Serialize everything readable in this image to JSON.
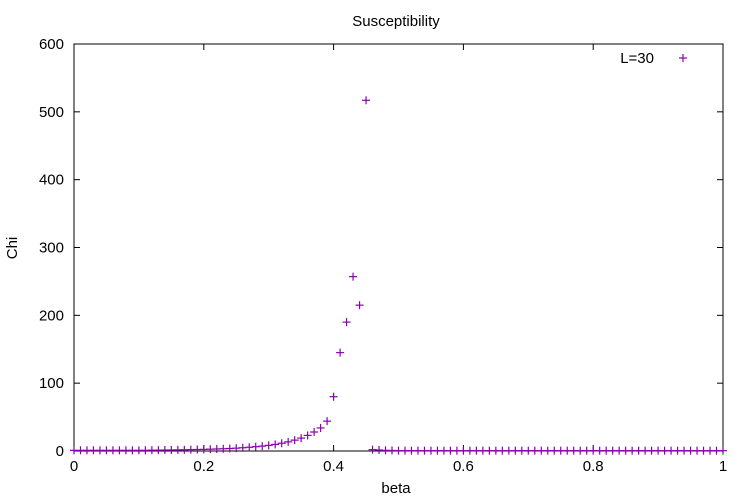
{
  "chart_data": {
    "type": "scatter",
    "title": "Susceptibility",
    "xlabel": "beta",
    "ylabel": "Chi",
    "xlim": [
      0,
      1
    ],
    "ylim": [
      0,
      600
    ],
    "xticks": [
      0,
      0.2,
      0.4,
      0.6,
      0.8,
      1
    ],
    "xtick_labels": [
      "0",
      "0.2",
      "0.4",
      "0.6",
      "0.8",
      "1"
    ],
    "yticks": [
      0,
      100,
      200,
      300,
      400,
      500,
      600
    ],
    "ytick_labels": [
      "0",
      "100",
      "200",
      "300",
      "400",
      "500",
      "600"
    ],
    "legend_position": "top-right",
    "grid": false,
    "marker": "plus",
    "series_color": "#8b00b0",
    "series": [
      {
        "name": "L=30",
        "x": [
          0.0,
          0.01,
          0.02,
          0.03,
          0.04,
          0.05,
          0.06,
          0.07,
          0.08,
          0.09,
          0.1,
          0.11,
          0.12,
          0.13,
          0.14,
          0.15,
          0.16,
          0.17,
          0.18,
          0.19,
          0.2,
          0.21,
          0.22,
          0.23,
          0.24,
          0.25,
          0.26,
          0.27,
          0.28,
          0.29,
          0.3,
          0.31,
          0.32,
          0.33,
          0.34,
          0.35,
          0.36,
          0.37,
          0.38,
          0.39,
          0.4,
          0.41,
          0.42,
          0.43,
          0.44,
          0.45,
          0.46,
          0.47,
          0.48,
          0.49,
          0.5,
          0.51,
          0.52,
          0.53,
          0.54,
          0.55,
          0.56,
          0.57,
          0.58,
          0.59,
          0.6,
          0.61,
          0.62,
          0.63,
          0.64,
          0.65,
          0.66,
          0.67,
          0.68,
          0.69,
          0.7,
          0.71,
          0.72,
          0.73,
          0.74,
          0.75,
          0.76,
          0.77,
          0.78,
          0.79,
          0.8,
          0.81,
          0.82,
          0.83,
          0.84,
          0.85,
          0.86,
          0.87,
          0.88,
          0.89,
          0.9,
          0.91,
          0.92,
          0.93,
          0.94,
          0.95,
          0.96,
          0.97,
          0.98,
          0.99,
          1.0
        ],
        "y": [
          1,
          1,
          1,
          1,
          1,
          1,
          1,
          1,
          1,
          1,
          1,
          1,
          1.2,
          1.3,
          1.4,
          1.5,
          1.7,
          1.8,
          2,
          2.2,
          2.4,
          2.7,
          3,
          3.3,
          3.7,
          4.2,
          4.8,
          5.5,
          6.3,
          7.2,
          8.3,
          9.7,
          11.5,
          13.5,
          16,
          19,
          23,
          28,
          34,
          44,
          80,
          145,
          190,
          257,
          215,
          517,
          2,
          1.5,
          1,
          0.8,
          0.5,
          0.5,
          0.5,
          0.5,
          0.5,
          0.5,
          0.5,
          0.5,
          0.5,
          0.5,
          0.5,
          0.5,
          0.5,
          0.5,
          0.5,
          0.5,
          0.5,
          0.5,
          0.5,
          0.5,
          0.5,
          0.5,
          0.5,
          0.5,
          0.5,
          0.5,
          0.5,
          0.5,
          0.5,
          0.5,
          0.5,
          0.5,
          0.5,
          0.5,
          0.5,
          0.5,
          0.5,
          0.5,
          0.5,
          0.5,
          0.5,
          0.5,
          0.5,
          0.5,
          0.5,
          0.5,
          0.5,
          0.5,
          0.5,
          0.5,
          0.5
        ]
      }
    ]
  }
}
